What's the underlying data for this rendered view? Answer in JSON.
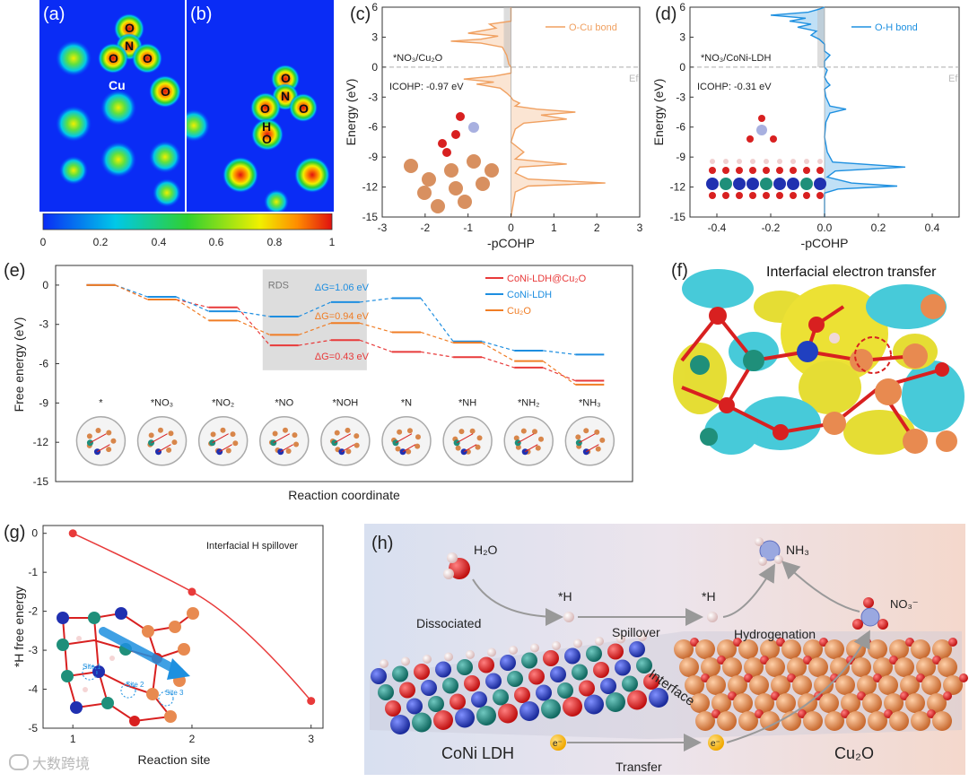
{
  "panels": {
    "a": {
      "label": "(a)",
      "atoms": {
        "o_top": "O",
        "n": "N",
        "o_left": "O",
        "o_right": "O",
        "cu": "Cu",
        "o_far": "O"
      }
    },
    "b": {
      "label": "(b)",
      "atoms": {
        "o_top": "O",
        "n": "N",
        "o_left": "O",
        "o_right": "O",
        "h": "H",
        "o_bottom": "O"
      }
    },
    "colorbar": {
      "ticks": [
        "0",
        "0.2",
        "0.4",
        "0.6",
        "0.8",
        "1"
      ]
    },
    "c": {
      "label": "(c)"
    },
    "d": {
      "label": "(d)"
    },
    "e": {
      "label": "(e)"
    },
    "f": {
      "label": "(f)",
      "title": "Interfacial electron transfer"
    },
    "g": {
      "label": "(g)"
    },
    "h": {
      "label": "(h)",
      "texts": {
        "h2o": "H₂O",
        "nh3": "NH₃",
        "h1": "*H",
        "h2": "*H",
        "no3": "NO₃⁻",
        "dissociated": "Dissociated",
        "spillover": "Spillover",
        "hydrogenation": "Hydrogenation",
        "interface": "Interface",
        "coni_ldh": "CoNi LDH",
        "cu2o": "Cu₂O",
        "e1": "e⁻",
        "e2": "e⁻",
        "transfer": "Transfer"
      }
    }
  },
  "watermark": "大数跨境",
  "colors": {
    "cu_bond": "#f0a060",
    "oh_bond": "#1e90e0",
    "coni_cu2o": "#e83a3a",
    "coni_ldh": "#1e8ee0",
    "cu2o": "#f07d25",
    "g_line": "#e83a3a",
    "rds_box": "#d9d9d9"
  },
  "chart_data": [
    {
      "id": "c",
      "type": "line",
      "legend": [
        "O-Cu bond"
      ],
      "annotations": [
        "*NO₃/Cu₂O",
        "ICOHP: -0.97 eV",
        "Ef"
      ],
      "xlabel": "-pCOHP",
      "ylabel": "Energy (eV)",
      "xlim": [
        -3,
        3
      ],
      "ylim": [
        -15,
        6
      ],
      "xticks": [
        "-3",
        "-2",
        "-1",
        "0",
        "1",
        "2",
        "3"
      ],
      "yticks": [
        "-15",
        "-12",
        "-9",
        "-6",
        "-3",
        "0",
        "3",
        "6"
      ],
      "points": [
        [
          0,
          6
        ],
        [
          0,
          4.6
        ],
        [
          -0.5,
          4.3
        ],
        [
          -0.35,
          3.9
        ],
        [
          -1.0,
          3.4
        ],
        [
          -0.3,
          3.1
        ],
        [
          -0.7,
          2.8
        ],
        [
          -1.4,
          2.6
        ],
        [
          -0.7,
          2.4
        ],
        [
          -0.2,
          2.0
        ],
        [
          -0.1,
          1.2
        ],
        [
          -0.05,
          0.3
        ],
        [
          0,
          0
        ],
        [
          0,
          -0.6
        ],
        [
          -0.4,
          -0.9
        ],
        [
          -1.1,
          -1.2
        ],
        [
          -0.4,
          -1.5
        ],
        [
          -0.8,
          -1.7
        ],
        [
          -0.25,
          -2.1
        ],
        [
          -0.1,
          -2.6
        ],
        [
          0,
          -3
        ],
        [
          0.05,
          -3.3
        ],
        [
          0.2,
          -3.6
        ],
        [
          0.1,
          -3.9
        ],
        [
          0.6,
          -4.2
        ],
        [
          1.5,
          -4.5
        ],
        [
          0.7,
          -4.8
        ],
        [
          1.3,
          -5.2
        ],
        [
          0.3,
          -5.6
        ],
        [
          0.1,
          -6.2
        ],
        [
          0,
          -7.5
        ],
        [
          0.3,
          -8.5
        ],
        [
          0.1,
          -9.2
        ],
        [
          1.3,
          -9.7
        ],
        [
          0.2,
          -10.0
        ],
        [
          0.1,
          -10.6
        ],
        [
          0.4,
          -11.2
        ],
        [
          2.2,
          -11.6
        ],
        [
          0.4,
          -11.9
        ],
        [
          0.1,
          -12.5
        ],
        [
          0,
          -15
        ]
      ]
    },
    {
      "id": "d",
      "type": "line",
      "legend": [
        "O-H bond"
      ],
      "annotations": [
        "*NO₃/CoNi-LDH",
        "ICOHP: -0.31 eV",
        "Ef"
      ],
      "xlabel": "-pCOHP",
      "ylabel": "Energy (eV)",
      "xlim": [
        -0.5,
        0.5
      ],
      "ylim": [
        -15,
        6
      ],
      "xticks": [
        "-0.4",
        "-0.2",
        "0.0",
        "0.2",
        "0.4"
      ],
      "yticks": [
        "-15",
        "-12",
        "-9",
        "-6",
        "-3",
        "0",
        "3",
        "6"
      ],
      "points": [
        [
          0,
          6
        ],
        [
          -0.02,
          5.8
        ],
        [
          -0.06,
          5.5
        ],
        [
          -0.2,
          5.2
        ],
        [
          -0.07,
          4.9
        ],
        [
          -0.13,
          4.6
        ],
        [
          -0.05,
          4.3
        ],
        [
          -0.1,
          4.0
        ],
        [
          -0.03,
          3.6
        ],
        [
          -0.05,
          3.2
        ],
        [
          -0.02,
          2.8
        ],
        [
          0,
          2.3
        ],
        [
          0,
          1.6
        ],
        [
          0.02,
          1.2
        ],
        [
          0,
          0.6
        ],
        [
          0,
          0
        ],
        [
          0.01,
          -0.3
        ],
        [
          0,
          -1
        ],
        [
          0.01,
          -1.5
        ],
        [
          0.02,
          -1.8
        ],
        [
          0,
          -2.2
        ],
        [
          0.005,
          -3.0
        ],
        [
          0.02,
          -3.9
        ],
        [
          0.08,
          -4.2
        ],
        [
          0.02,
          -4.6
        ],
        [
          0.005,
          -5.5
        ],
        [
          0,
          -7
        ],
        [
          0.01,
          -8.5
        ],
        [
          0.03,
          -9.5
        ],
        [
          0.3,
          -10.0
        ],
        [
          0.04,
          -10.4
        ],
        [
          0.01,
          -11.0
        ],
        [
          0.1,
          -11.6
        ],
        [
          0.27,
          -11.9
        ],
        [
          0.05,
          -12.2
        ],
        [
          0,
          -12.6
        ],
        [
          0,
          -15
        ]
      ]
    },
    {
      "id": "e",
      "type": "line",
      "xlabel": "Reaction coordinate",
      "ylabel": "Free energy (eV)",
      "ylim": [
        -15,
        1.5
      ],
      "yticks": [
        "0",
        "-3",
        "-6",
        "-9",
        "-12",
        "-15"
      ],
      "categories": [
        "*",
        "*NO₃",
        "*NO₂",
        "*NO",
        "*NOH",
        "*N",
        "*NH",
        "*NH₂",
        "*NH₃"
      ],
      "series": [
        {
          "name": "CoNi-LDH@Cu₂O",
          "values": [
            0,
            -1.1,
            -1.7,
            -4.6,
            -4.2,
            -5.1,
            -5.5,
            -6.3,
            -7.3
          ]
        },
        {
          "name": "CoNi-LDH",
          "values": [
            0,
            -0.9,
            -2.0,
            -2.4,
            -1.3,
            -1.0,
            -4.3,
            -5.0,
            -5.3
          ]
        },
        {
          "name": "Cu₂O",
          "values": [
            0,
            -1.1,
            -2.7,
            -3.8,
            -2.9,
            -3.6,
            -4.4,
            -5.8,
            -7.6
          ]
        }
      ],
      "annotations": [
        "RDS",
        "ΔG=1.06 eV",
        "ΔG=0.94 eV",
        "ΔG=0.43 eV"
      ],
      "legend_position": "top-right"
    },
    {
      "id": "g",
      "type": "line",
      "xlabel": "Reaction site",
      "ylabel": "*H free energy",
      "xlim": [
        0.75,
        3.1
      ],
      "ylim": [
        -5,
        0.2
      ],
      "xticks": [
        "1",
        "2",
        "3"
      ],
      "yticks": [
        "0",
        "-1",
        "-2",
        "-3",
        "-4",
        "-5"
      ],
      "x": [
        1,
        2,
        3
      ],
      "values": [
        0,
        -1.5,
        -4.3
      ],
      "annotations": [
        "Interfacial H spillover",
        "Site 1",
        "Site 2",
        "Site 3"
      ]
    }
  ]
}
